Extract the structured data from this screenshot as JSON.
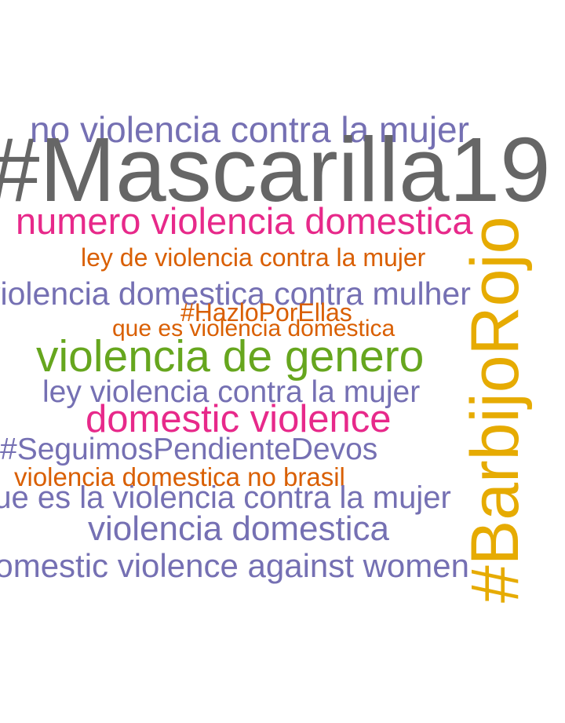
{
  "words": [
    {
      "id": "w1",
      "text": "no violencia contra la mujer",
      "color": "#7570b3"
    },
    {
      "id": "w2",
      "text": "#Mascarilla19",
      "color": "#666666"
    },
    {
      "id": "w3",
      "text": "numero violencia domestica",
      "color": "#e7298a"
    },
    {
      "id": "w4",
      "text": "ley de violencia contra la mujer",
      "color": "#d95f02"
    },
    {
      "id": "w5",
      "text": "violencia domestica contra mulher",
      "color": "#7570b3"
    },
    {
      "id": "w6",
      "text": "#HazloPorEllas",
      "color": "#d95f02"
    },
    {
      "id": "w7",
      "text": "que es violencia domestica",
      "color": "#d95f02"
    },
    {
      "id": "w8",
      "text": "violencia de genero",
      "color": "#66a61e"
    },
    {
      "id": "w9",
      "text": "ley violencia contra la mujer",
      "color": "#7570b3"
    },
    {
      "id": "w10",
      "text": "domestic violence",
      "color": "#e7298a"
    },
    {
      "id": "w11",
      "text": "#SeguimosPendienteDevos",
      "color": "#7570b3"
    },
    {
      "id": "w12",
      "text": "violencia domestica no brasil",
      "color": "#d95f02"
    },
    {
      "id": "w13",
      "text": "que es la violencia contra la mujer",
      "color": "#7570b3"
    },
    {
      "id": "w14",
      "text": "violencia domestica",
      "color": "#7570b3"
    },
    {
      "id": "w15",
      "text": "domestic violence against women",
      "color": "#7570b3"
    },
    {
      "id": "w16",
      "text": "#BarbijoRojo",
      "color": "#e6ab02",
      "orientation": "vertical"
    }
  ]
}
